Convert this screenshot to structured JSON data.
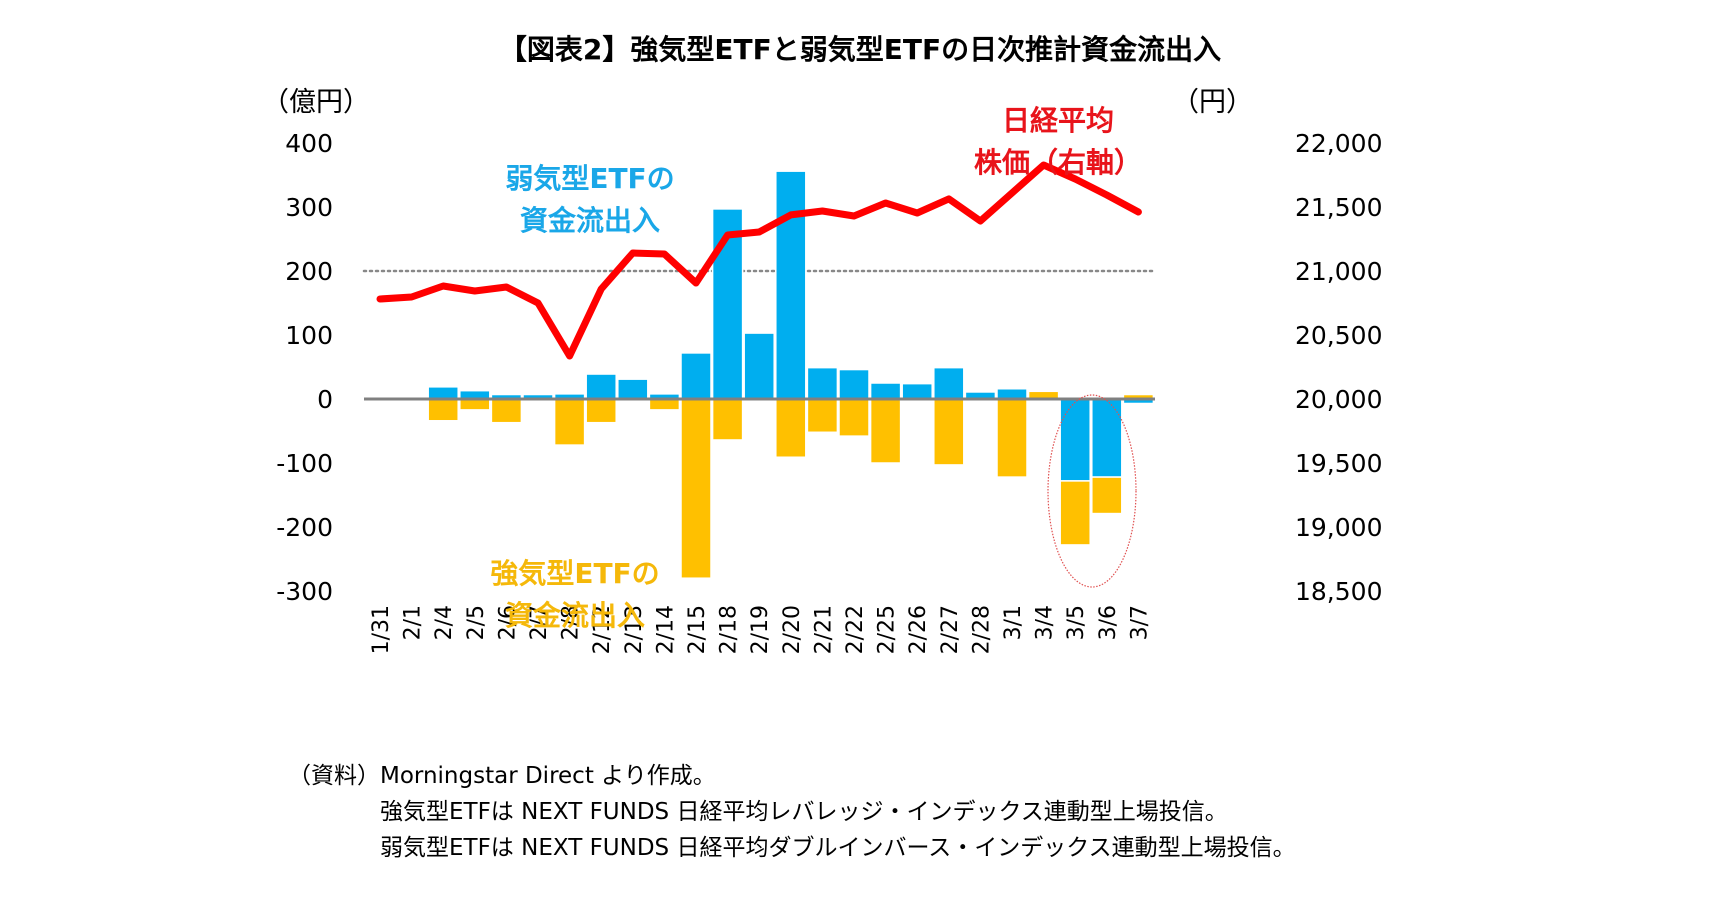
{
  "title": "【図表2】強気型ETFと弱気型ETFの日次推計資金流出入",
  "chart_data": {
    "type": "bar",
    "title": "【図表2】強気型ETFと弱気型ETFの日次推計資金流出入",
    "categories": [
      "1/31",
      "2/1",
      "2/4",
      "2/5",
      "2/6",
      "2/7",
      "2/8",
      "2/12",
      "2/13",
      "2/14",
      "2/15",
      "2/18",
      "2/19",
      "2/20",
      "2/21",
      "2/22",
      "2/25",
      "2/26",
      "2/27",
      "2/28",
      "3/1",
      "3/4",
      "3/5",
      "3/6",
      "3/7"
    ],
    "ylabel_left": "（億円）",
    "ylabel_right": "（円）",
    "ylim_left": [
      -300,
      400
    ],
    "yticks_left": [
      "400",
      "300",
      "200",
      "100",
      "0",
      "-100",
      "-200",
      "-300"
    ],
    "ylim_right": [
      18500,
      22000
    ],
    "yticks_right": [
      "22,000",
      "21,500",
      "21,000",
      "20,500",
      "20,000",
      "19,500",
      "19,000",
      "18,500"
    ],
    "reference_line": {
      "axis": "left",
      "value": 200,
      "style": "dotted"
    },
    "series": [
      {
        "name": "弱気型ETFの資金流出入",
        "type": "bar",
        "axis": "left",
        "color": "#00AEEF",
        "values": [
          0,
          0,
          19,
          13,
          7,
          7,
          8,
          39,
          31,
          8,
          72,
          297,
          103,
          356,
          49,
          46,
          25,
          24,
          49,
          11,
          16,
          0,
          -128,
          -122,
          -7
        ]
      },
      {
        "name": "強気型ETFの資金流出入",
        "type": "bar",
        "axis": "left",
        "color": "#FFC000",
        "values": [
          0,
          -1,
          -34,
          -17,
          -37,
          0,
          -72,
          -37,
          0,
          -17,
          -280,
          -64,
          0,
          -91,
          -52,
          -58,
          -100,
          0,
          -103,
          0,
          -122,
          12,
          -100,
          -57,
          7
        ]
      },
      {
        "name": "日経平均株価（右軸）",
        "type": "line",
        "axis": "right",
        "color": "#FF0000",
        "values": [
          20781,
          20797,
          20883,
          20844,
          20875,
          20750,
          20336,
          20859,
          21141,
          21133,
          20906,
          21281,
          21305,
          21438,
          21469,
          21430,
          21531,
          21453,
          21563,
          21391,
          21609,
          21828,
          21719,
          21594,
          21461
        ]
      }
    ],
    "annotations": {
      "bear_label": [
        "弱気型ETFの",
        "資金流出入"
      ],
      "bull_label": [
        "強気型ETFの",
        "資金流出入"
      ],
      "nikkei_label": [
        "日経平均",
        "株価（右軸）"
      ],
      "highlight_ellipse": [
        "3/5",
        "3/6"
      ]
    },
    "legend": "inline-annotations"
  },
  "notes": {
    "source_prefix": "（資料）",
    "source": "Morningstar Direct より作成。",
    "line2": "強気型ETFは NEXT FUNDS  日経平均レバレッジ・インデックス連動型上場投信。",
    "line3": "弱気型ETFは NEXT FUNDS  日経平均ダブルインバース・インデックス連動型上場投信。"
  }
}
